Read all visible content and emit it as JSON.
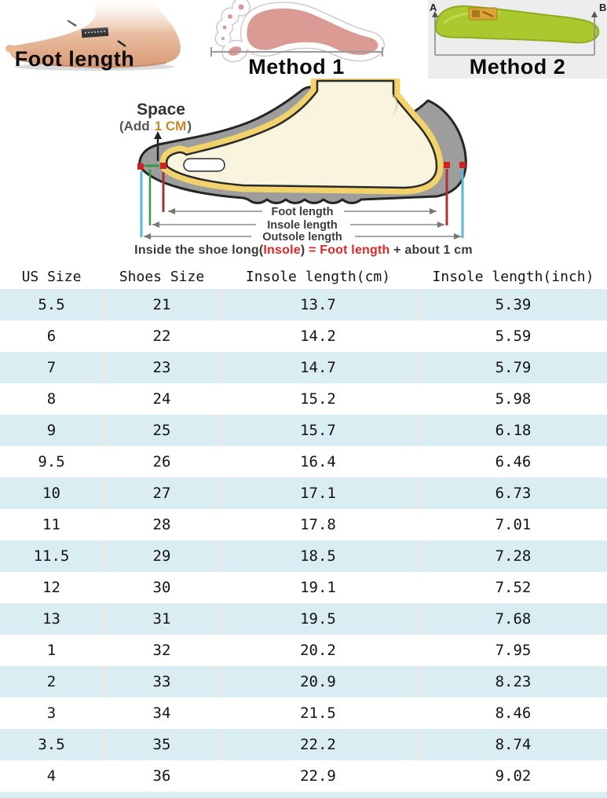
{
  "top_methods": {
    "foot_length_label": "Foot length",
    "method1_label": "Method 1",
    "method2_label": "Method 2",
    "method2_point_a": "A",
    "method2_point_b": "B"
  },
  "diagram": {
    "space_label": "Space",
    "space_add_prefix": "(Add",
    "space_add_value": "1 CM",
    "space_add_suffix": ")",
    "measure_foot": "Foot length",
    "measure_insole": "Insole length",
    "measure_outsole": "Outsole length",
    "formula": {
      "part1": "Inside the shoe long(",
      "insole": "Insole",
      "part2": ") ",
      "equals": "=",
      "part3": " ",
      "foot_length": "Foot length",
      "part4": " + about ",
      "value": "1 cm"
    }
  },
  "table": {
    "headers": [
      "US Size",
      "Shoes Size",
      "Insole length(cm)",
      "Insole length(inch)"
    ],
    "rows": [
      [
        "5.5",
        "21",
        "13.7",
        "5.39"
      ],
      [
        "6",
        "22",
        "14.2",
        "5.59"
      ],
      [
        "7",
        "23",
        "14.7",
        "5.79"
      ],
      [
        "8",
        "24",
        "15.2",
        "5.98"
      ],
      [
        "9",
        "25",
        "15.7",
        "6.18"
      ],
      [
        "9.5",
        "26",
        "16.4",
        "6.46"
      ],
      [
        "10",
        "27",
        "17.1",
        "6.73"
      ],
      [
        "11",
        "28",
        "17.8",
        "7.01"
      ],
      [
        "11.5",
        "29",
        "18.5",
        "7.28"
      ],
      [
        "12",
        "30",
        "19.1",
        "7.52"
      ],
      [
        "13",
        "31",
        "19.5",
        "7.68"
      ],
      [
        "1",
        "32",
        "20.2",
        "7.95"
      ],
      [
        "2",
        "33",
        "20.9",
        "8.23"
      ],
      [
        "3",
        "34",
        "21.5",
        "8.46"
      ],
      [
        "3.5",
        "35",
        "22.2",
        "8.74"
      ],
      [
        "4",
        "36",
        "22.9",
        "9.02"
      ]
    ]
  },
  "colors": {
    "row_alt_blue": "#d9edf2",
    "column_gap_gray": "#e8e8e8",
    "formula_red": "#e02525",
    "space_value_orange": "#c8862c",
    "shoe_gray": "#9d9d9d",
    "insole_yellow": "#f2d36b",
    "foot_cream": "#f8f4dd",
    "footprint_pink": "#db9a93",
    "insole_green": "#a9c92e",
    "marker_red": "#d62020",
    "line_blue": "#58b6d8",
    "line_green": "#2f9e42",
    "line_dark_red": "#a83030"
  }
}
